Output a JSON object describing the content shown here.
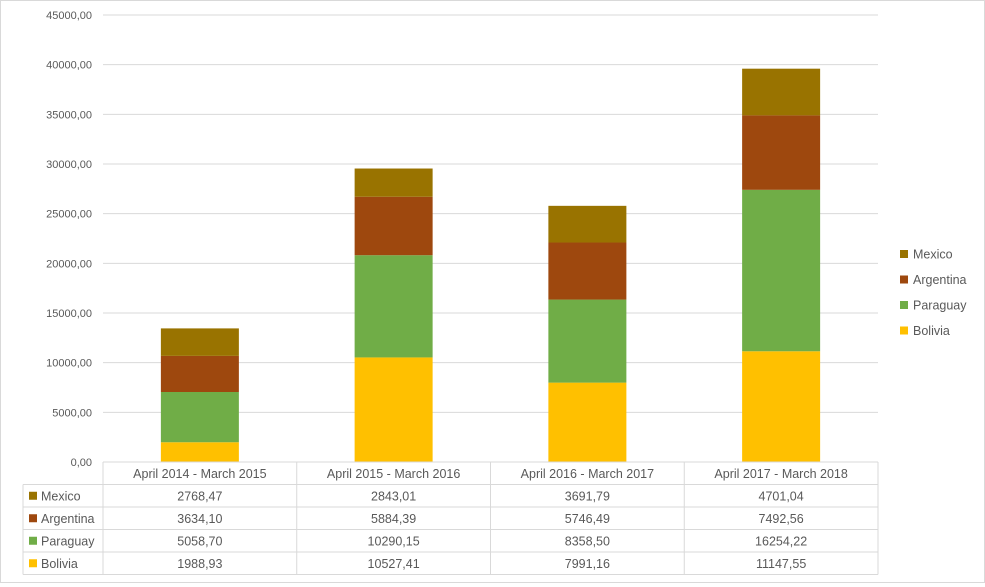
{
  "chart_data": {
    "type": "bar",
    "stacked": true,
    "categories": [
      "April 2014 - March 2015",
      "April 2015 - March 2016",
      "April 2016 - March 2017",
      "April 2017 - March 2018"
    ],
    "series": [
      {
        "name": "Bolivia",
        "values": [
          1988.93,
          10527.41,
          7991.16,
          11147.55
        ],
        "color": "#ffc000",
        "labels": [
          "1988,93",
          "10527,41",
          "7991,16",
          "11147,55"
        ]
      },
      {
        "name": "Paraguay",
        "values": [
          5058.7,
          10290.15,
          8358.5,
          16254.22
        ],
        "color": "#70ad47",
        "labels": [
          "5058,70",
          "10290,15",
          "8358,50",
          "16254,22"
        ]
      },
      {
        "name": "Argentina",
        "values": [
          3634.1,
          5884.39,
          5746.49,
          7492.56
        ],
        "color": "#9e480e",
        "labels": [
          "3634,10",
          "5884,39",
          "5746,49",
          "7492,56"
        ]
      },
      {
        "name": "Mexico",
        "values": [
          2768.47,
          2843.01,
          3691.79,
          4701.04
        ],
        "color": "#997300",
        "labels": [
          "2768,47",
          "2843,01",
          "3691,79",
          "4701,04"
        ]
      }
    ],
    "ylim": [
      0,
      45000
    ],
    "yticks": [
      0,
      5000,
      10000,
      15000,
      20000,
      25000,
      30000,
      35000,
      40000,
      45000
    ],
    "ytick_labels": [
      "0,00",
      "5000,00",
      "10000,00",
      "15000,00",
      "20000,00",
      "25000,00",
      "30000,00",
      "35000,00",
      "40000,00",
      "45000,00"
    ],
    "legend_position": "right",
    "data_table": true,
    "grid": true,
    "colors": {
      "grid": "#d9d9d9",
      "axis_text": "#595959",
      "frame": "#d9d9d9"
    }
  }
}
